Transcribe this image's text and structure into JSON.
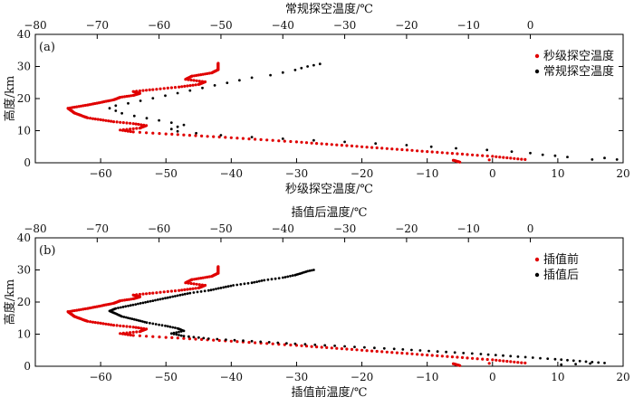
{
  "chart_data": [
    {
      "type": "scatter",
      "panel_label": "(a)",
      "ylabel": "高度/km",
      "ylim": [
        0,
        40
      ],
      "yticks": [
        0,
        10,
        20,
        30,
        40
      ],
      "bottom_axis": {
        "label": "秒级探空温度/℃",
        "xlim": [
          -70,
          20
        ],
        "ticks": [
          -60,
          -50,
          -40,
          -30,
          -20,
          -10,
          0,
          10,
          20
        ]
      },
      "top_axis": {
        "label": "常规探空温度/℃",
        "xlim": [
          -80,
          15
        ],
        "ticks": [
          -80,
          -70,
          -60,
          -50,
          -40,
          -30,
          -20,
          -10,
          0
        ]
      },
      "grid": false,
      "legend_position": "top-right",
      "series": [
        {
          "name": "秒级探空温度",
          "axis": "bottom",
          "color": "#e00000",
          "marker": "dense-line",
          "points": [
            [
              -5,
              0.2
            ],
            [
              -6,
              0.8
            ],
            [
              5,
              1.0
            ],
            [
              0,
              2.0
            ],
            [
              -10,
              3.5
            ],
            [
              -20,
              5.0
            ],
            [
              -30,
              6.5
            ],
            [
              -40,
              7.8
            ],
            [
              -50,
              9.0
            ],
            [
              -55,
              9.6
            ],
            [
              -57,
              10.2
            ],
            [
              -54,
              10.8
            ],
            [
              -53,
              11.6
            ],
            [
              -55,
              12.2
            ],
            [
              -58,
              12.8
            ],
            [
              -62,
              14.0
            ],
            [
              -64,
              15.5
            ],
            [
              -65,
              17.0
            ],
            [
              -62,
              18.0
            ],
            [
              -60,
              18.8
            ],
            [
              -58,
              19.6
            ],
            [
              -57,
              20.4
            ],
            [
              -55,
              21.0
            ],
            [
              -54,
              21.6
            ],
            [
              -55,
              22.2
            ],
            [
              -52,
              22.8
            ],
            [
              -48,
              23.6
            ],
            [
              -45,
              24.4
            ],
            [
              -44,
              25.2
            ],
            [
              -47,
              26.0
            ],
            [
              -46,
              27.0
            ],
            [
              -43,
              28.0
            ],
            [
              -42,
              29.0
            ],
            [
              -42,
              30.2
            ],
            [
              -42,
              31.0
            ]
          ]
        },
        {
          "name": "常规探空温度",
          "axis": "top",
          "color": "#000000",
          "marker": "dot",
          "points": [
            [
              14,
              1.0
            ],
            [
              12,
              1.5
            ],
            [
              10,
              1.0
            ],
            [
              6,
              1.8
            ],
            [
              4,
              2.2
            ],
            [
              2,
              2.5
            ],
            [
              0,
              3.0
            ],
            [
              -3,
              3.5
            ],
            [
              -7,
              4.0
            ],
            [
              -12,
              4.5
            ],
            [
              -16,
              5.0
            ],
            [
              -20,
              5.5
            ],
            [
              -25,
              6.0
            ],
            [
              -30,
              6.5
            ],
            [
              -35,
              7.0
            ],
            [
              -40,
              7.5
            ],
            [
              -45,
              8.0
            ],
            [
              -50,
              8.6
            ],
            [
              -54,
              9.2
            ],
            [
              -57,
              9.8
            ],
            [
              -58,
              10.5
            ],
            [
              -57,
              11.2
            ],
            [
              -56,
              11.8
            ],
            [
              -58,
              12.5
            ],
            [
              -60,
              13.2
            ],
            [
              -62,
              13.9
            ],
            [
              -64,
              14.6
            ],
            [
              -66,
              15.4
            ],
            [
              -67,
              16.2
            ],
            [
              -68,
              17.0
            ],
            [
              -67,
              17.8
            ],
            [
              -65,
              18.5
            ],
            [
              -63,
              19.3
            ],
            [
              -61,
              20.1
            ],
            [
              -59,
              20.9
            ],
            [
              -57,
              21.7
            ],
            [
              -55,
              22.5
            ],
            [
              -53,
              23.3
            ],
            [
              -51,
              24.1
            ],
            [
              -49,
              24.9
            ],
            [
              -47,
              25.7
            ],
            [
              -45,
              26.5
            ],
            [
              -42,
              27.3
            ],
            [
              -40,
              28.1
            ],
            [
              -38,
              28.9
            ],
            [
              -37,
              29.5
            ],
            [
              -36,
              30.0
            ],
            [
              -35,
              30.4
            ],
            [
              -34,
              30.8
            ]
          ]
        }
      ]
    },
    {
      "type": "scatter",
      "panel_label": "(b)",
      "ylabel": "高度/km",
      "ylim": [
        0,
        40
      ],
      "yticks": [
        0,
        10,
        20,
        30,
        40
      ],
      "bottom_axis": {
        "label": "插值前温度/℃",
        "xlim": [
          -70,
          20
        ],
        "ticks": [
          -60,
          -50,
          -40,
          -30,
          -20,
          -10,
          0,
          10,
          20
        ]
      },
      "top_axis": {
        "label": "插值后温度/℃",
        "xlim": [
          -80,
          15
        ],
        "ticks": [
          -80,
          -70,
          -60,
          -50,
          -40,
          -30,
          -20,
          -10,
          0
        ]
      },
      "grid": false,
      "legend_position": "top-right",
      "series": [
        {
          "name": "插值前",
          "axis": "bottom",
          "color": "#e00000",
          "marker": "dense-line",
          "points": [
            [
              -5,
              0.2
            ],
            [
              -6,
              0.8
            ],
            [
              5,
              1.0
            ],
            [
              0,
              2.0
            ],
            [
              -10,
              3.5
            ],
            [
              -20,
              5.0
            ],
            [
              -30,
              6.5
            ],
            [
              -40,
              7.8
            ],
            [
              -50,
              9.0
            ],
            [
              -55,
              9.6
            ],
            [
              -57,
              10.2
            ],
            [
              -54,
              10.8
            ],
            [
              -53,
              11.6
            ],
            [
              -55,
              12.2
            ],
            [
              -58,
              12.8
            ],
            [
              -62,
              14.0
            ],
            [
              -64,
              15.5
            ],
            [
              -65,
              17.0
            ],
            [
              -62,
              18.0
            ],
            [
              -60,
              18.8
            ],
            [
              -58,
              19.6
            ],
            [
              -57,
              20.4
            ],
            [
              -55,
              21.0
            ],
            [
              -54,
              21.6
            ],
            [
              -55,
              22.2
            ],
            [
              -52,
              22.8
            ],
            [
              -48,
              23.6
            ],
            [
              -45,
              24.4
            ],
            [
              -44,
              25.2
            ],
            [
              -47,
              26.0
            ],
            [
              -46,
              27.0
            ],
            [
              -43,
              28.0
            ],
            [
              -42,
              29.0
            ],
            [
              -42,
              30.2
            ],
            [
              -42,
              31.0
            ]
          ]
        },
        {
          "name": "插值后",
          "axis": "top",
          "color": "#000000",
          "marker": "dense-dot",
          "points": [
            [
              5,
              0.5
            ],
            [
              12,
              1.0
            ],
            [
              8,
              1.6
            ],
            [
              4,
              2.2
            ],
            [
              -2,
              3.0
            ],
            [
              -8,
              3.8
            ],
            [
              -15,
              4.6
            ],
            [
              -22,
              5.4
            ],
            [
              -30,
              6.2
            ],
            [
              -38,
              7.0
            ],
            [
              -45,
              7.8
            ],
            [
              -52,
              8.6
            ],
            [
              -56,
              9.4
            ],
            [
              -58,
              10.2
            ],
            [
              -56,
              11.0
            ],
            [
              -57,
              11.8
            ],
            [
              -59,
              12.6
            ],
            [
              -62,
              13.6
            ],
            [
              -64,
              14.6
            ],
            [
              -66,
              15.5
            ],
            [
              -67,
              16.4
            ],
            [
              -68,
              17.2
            ],
            [
              -67,
              18.0
            ],
            [
              -65,
              18.8
            ],
            [
              -63,
              19.6
            ],
            [
              -61,
              20.4
            ],
            [
              -59,
              21.2
            ],
            [
              -57,
              22.0
            ],
            [
              -55,
              22.8
            ],
            [
              -52,
              23.6
            ],
            [
              -50,
              24.4
            ],
            [
              -48,
              25.2
            ],
            [
              -45,
              26.0
            ],
            [
              -43,
              26.8
            ],
            [
              -40,
              27.6
            ],
            [
              -38,
              28.4
            ],
            [
              -37,
              29.0
            ],
            [
              -36,
              29.6
            ],
            [
              -35,
              30.0
            ]
          ]
        }
      ]
    }
  ]
}
